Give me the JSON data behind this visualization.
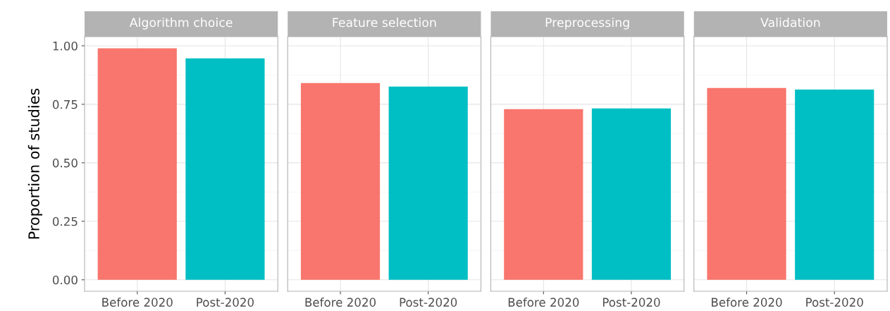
{
  "chart_data": [
    {
      "type": "bar",
      "title": "Algorithm choice",
      "ylabel": "Proportion of studies",
      "categories": [
        "Before 2020",
        "Post-2020"
      ],
      "values": [
        0.989,
        0.946
      ],
      "colors": [
        "#f8766d",
        "#00bfc4"
      ],
      "ylim": [
        -0.049,
        1.039
      ],
      "yticks": [
        {
          "value": 0,
          "label": "0.00"
        },
        {
          "value": 0.25,
          "label": "0.25"
        },
        {
          "value": 0.5,
          "label": "0.50"
        },
        {
          "value": 0.75,
          "label": "0.75"
        },
        {
          "value": 1,
          "label": "1.00"
        }
      ],
      "grid": true
    },
    {
      "type": "bar",
      "title": "Feature selection",
      "categories": [
        "Before 2020",
        "Post-2020"
      ],
      "values": [
        0.841,
        0.826
      ],
      "colors": [
        "#f8766d",
        "#00bfc4"
      ],
      "ylim": [
        -0.049,
        1.039
      ],
      "yticks": [
        0,
        0.25,
        0.5,
        0.75,
        1
      ],
      "grid": true,
      "tick_labels": "x"
    },
    {
      "type": "bar",
      "title": "Preprocessing",
      "categories": [
        "Before 2020",
        "Post-2020"
      ],
      "values": [
        0.729,
        0.732
      ],
      "colors": [
        "#f8766d",
        "#00bfc4"
      ],
      "ylim": [
        -0.049,
        1.039
      ],
      "yticks": [
        0,
        0.25,
        0.5,
        0.75,
        1
      ],
      "grid": true,
      "tick_labels": "x"
    },
    {
      "type": "bar",
      "title": "Validation",
      "categories": [
        "Before 2020",
        "Post-2020"
      ],
      "values": [
        0.82,
        0.813
      ],
      "colors": [
        "#f8766d",
        "#00bfc4"
      ],
      "ylim": [
        -0.049,
        1.039
      ],
      "yticks": [
        0,
        0.25,
        0.5,
        0.75,
        1
      ],
      "grid": true,
      "tick_labels": "x"
    }
  ]
}
